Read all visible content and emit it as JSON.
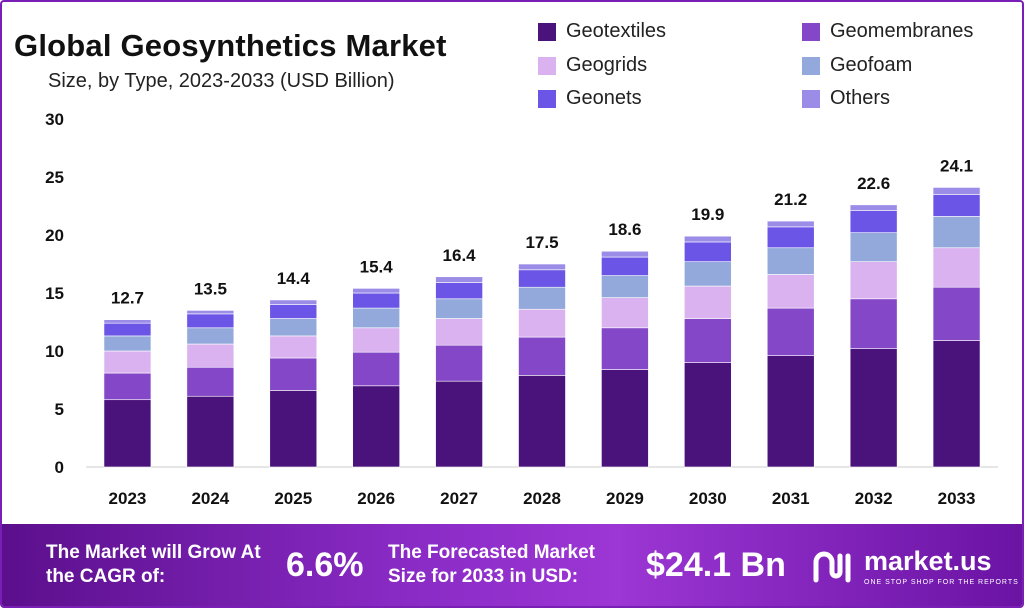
{
  "title": "Global Geosynthetics Market",
  "subtitle": "Size, by Type, 2023-2033 (USD Billion)",
  "colors": {
    "Geotextiles": "#4a137c",
    "Geomembranes": "#8447c8",
    "Geogrids": "#d9b2ef",
    "Geofoam": "#93a9db",
    "Geonets": "#6a55e6",
    "Others": "#9b8ce8"
  },
  "chart_data": {
    "type": "bar",
    "stacked": true,
    "title": "Global Geosynthetics Market",
    "subtitle": "Size, by Type, 2023-2033 (USD Billion)",
    "categories": [
      "2023",
      "2024",
      "2025",
      "2026",
      "2027",
      "2028",
      "2029",
      "2030",
      "2031",
      "2032",
      "2033"
    ],
    "ylim": [
      0,
      30
    ],
    "yticks": [
      0,
      5,
      10,
      15,
      20,
      25,
      30
    ],
    "totals": [
      "12.7",
      "13.5",
      "14.4",
      "15.4",
      "16.4",
      "17.5",
      "18.6",
      "19.9",
      "21.2",
      "22.6",
      "24.1"
    ],
    "legend_position": "top-right",
    "series": [
      {
        "name": "Geotextiles",
        "values": [
          5.8,
          6.1,
          6.6,
          7.0,
          7.4,
          7.9,
          8.4,
          9.0,
          9.6,
          10.2,
          10.9
        ]
      },
      {
        "name": "Geomembranes",
        "values": [
          2.3,
          2.5,
          2.8,
          2.9,
          3.1,
          3.3,
          3.6,
          3.8,
          4.1,
          4.3,
          4.6
        ]
      },
      {
        "name": "Geogrids",
        "values": [
          1.9,
          2.0,
          1.9,
          2.1,
          2.3,
          2.4,
          2.6,
          2.8,
          2.9,
          3.2,
          3.4
        ]
      },
      {
        "name": "Geofoam",
        "values": [
          1.3,
          1.4,
          1.5,
          1.7,
          1.7,
          1.9,
          1.9,
          2.1,
          2.3,
          2.5,
          2.7
        ]
      },
      {
        "name": "Geonets",
        "values": [
          1.1,
          1.2,
          1.2,
          1.3,
          1.4,
          1.5,
          1.6,
          1.7,
          1.8,
          1.9,
          1.9
        ]
      },
      {
        "name": "Others",
        "values": [
          0.3,
          0.3,
          0.4,
          0.4,
          0.5,
          0.5,
          0.5,
          0.5,
          0.5,
          0.5,
          0.6
        ]
      }
    ]
  },
  "banner": {
    "cagr_label": "The Market will Grow At the CAGR of:",
    "cagr_value": "6.6%",
    "forecast_label": "The Forecasted Market Size for 2033 in USD:",
    "forecast_value": "$24.1 Bn",
    "logo_name": "market.us",
    "logo_tagline": "ONE STOP SHOP FOR THE REPORTS"
  }
}
